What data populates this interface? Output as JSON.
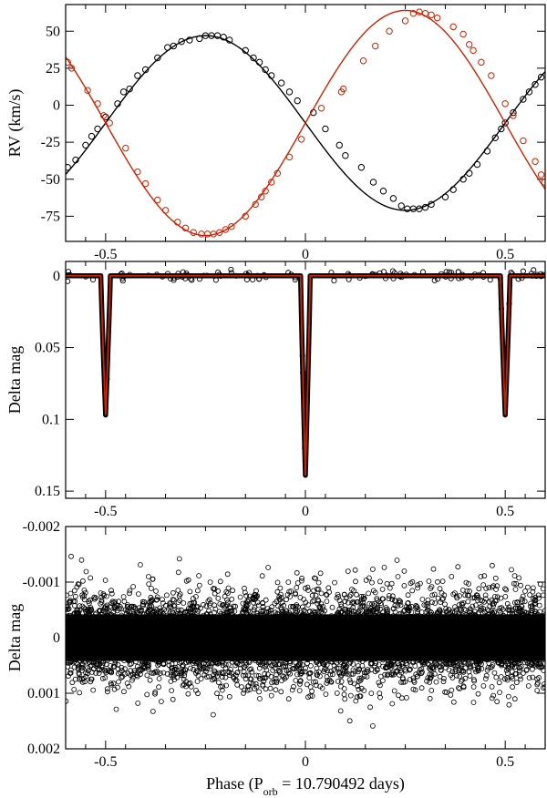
{
  "figure": {
    "xlabel_prefix": "Phase (P",
    "xlabel_sub": "orb",
    "xlabel_suffix": " = 10.790492 days)"
  },
  "chart_data": [
    {
      "type": "scatter",
      "panel": "radial-velocity",
      "ylabel": "RV (km/s)",
      "xlim": [
        -0.6,
        0.6
      ],
      "ylim": [
        -92,
        68
      ],
      "xticks": [
        -0.5,
        0,
        0.5
      ],
      "xtick_labels": [
        "-0.5",
        "0",
        "0.5"
      ],
      "yticks": [
        50,
        25,
        0,
        -25,
        -50,
        -75
      ],
      "ytick_labels": [
        "50",
        "25",
        "0",
        "-25",
        "-50",
        "-75"
      ],
      "grid": false,
      "series": [
        {
          "color": "#000000",
          "marker": "open-circle",
          "model": {
            "gamma": -12,
            "amplitude": 59,
            "phase_of_max": -0.25
          },
          "points": [
            [
              -0.595,
              -42
            ],
            [
              -0.575,
              -37
            ],
            [
              -0.55,
              -27
            ],
            [
              -0.535,
              -21
            ],
            [
              -0.52,
              -16
            ],
            [
              -0.5,
              -8
            ],
            [
              -0.47,
              1
            ],
            [
              -0.455,
              9
            ],
            [
              -0.44,
              11
            ],
            [
              -0.42,
              20
            ],
            [
              -0.4,
              24
            ],
            [
              -0.37,
              32
            ],
            [
              -0.345,
              39
            ],
            [
              -0.33,
              40
            ],
            [
              -0.31,
              43
            ],
            [
              -0.29,
              44
            ],
            [
              -0.265,
              45
            ],
            [
              -0.25,
              47
            ],
            [
              -0.235,
              47
            ],
            [
              -0.22,
              47
            ],
            [
              -0.205,
              46
            ],
            [
              -0.19,
              44
            ],
            [
              -0.15,
              37
            ],
            [
              -0.13,
              32
            ],
            [
              -0.115,
              29
            ],
            [
              -0.1,
              24
            ],
            [
              -0.085,
              20
            ],
            [
              -0.06,
              15
            ],
            [
              -0.04,
              9
            ],
            [
              -0.02,
              3
            ],
            [
              0.02,
              -5
            ],
            [
              0.05,
              -16
            ],
            [
              0.085,
              -27
            ],
            [
              0.1,
              -34
            ],
            [
              0.14,
              -42
            ],
            [
              0.17,
              -52
            ],
            [
              0.195,
              -58
            ],
            [
              0.22,
              -63
            ],
            [
              0.24,
              -68
            ],
            [
              0.255,
              -70
            ],
            [
              0.27,
              -70
            ],
            [
              0.285,
              -70
            ],
            [
              0.3,
              -69
            ],
            [
              0.315,
              -67
            ],
            [
              0.35,
              -62
            ],
            [
              0.37,
              -57
            ],
            [
              0.395,
              -50
            ],
            [
              0.41,
              -46
            ],
            [
              0.43,
              -40
            ],
            [
              0.455,
              -31
            ],
            [
              0.475,
              -22
            ],
            [
              0.49,
              -16
            ],
            [
              0.5,
              -12
            ],
            [
              0.52,
              -5
            ],
            [
              0.545,
              4
            ],
            [
              0.56,
              9
            ],
            [
              0.575,
              14
            ],
            [
              0.59,
              19
            ]
          ]
        },
        {
          "color": "#cc2200",
          "marker": "open-circle",
          "model": {
            "gamma": -12,
            "amplitude": 76,
            "phase_of_max": 0.25
          },
          "points": [
            [
              -0.595,
              29
            ],
            [
              -0.585,
              25
            ],
            [
              -0.545,
              10
            ],
            [
              -0.52,
              1
            ],
            [
              -0.505,
              -7
            ],
            [
              -0.49,
              -12
            ],
            [
              -0.45,
              -29
            ],
            [
              -0.42,
              -45
            ],
            [
              -0.4,
              -53
            ],
            [
              -0.37,
              -64
            ],
            [
              -0.35,
              -71
            ],
            [
              -0.32,
              -79
            ],
            [
              -0.3,
              -83
            ],
            [
              -0.28,
              -86
            ],
            [
              -0.26,
              -87
            ],
            [
              -0.245,
              -87
            ],
            [
              -0.23,
              -87
            ],
            [
              -0.215,
              -86
            ],
            [
              -0.2,
              -84
            ],
            [
              -0.185,
              -82
            ],
            [
              -0.15,
              -75
            ],
            [
              -0.125,
              -67
            ],
            [
              -0.11,
              -62
            ],
            [
              -0.1,
              -58
            ],
            [
              -0.085,
              -52
            ],
            [
              -0.07,
              -46
            ],
            [
              -0.04,
              -35
            ],
            [
              -0.01,
              -23
            ],
            [
              0.04,
              -2
            ],
            [
              0.09,
              9
            ],
            [
              0.095,
              11
            ],
            [
              0.145,
              30
            ],
            [
              0.175,
              40
            ],
            [
              0.21,
              50
            ],
            [
              0.25,
              57
            ],
            [
              0.27,
              62
            ],
            [
              0.285,
              63
            ],
            [
              0.3,
              62
            ],
            [
              0.315,
              61
            ],
            [
              0.33,
              59
            ],
            [
              0.37,
              53
            ],
            [
              0.395,
              48
            ],
            [
              0.41,
              41
            ],
            [
              0.42,
              37
            ],
            [
              0.44,
              29
            ],
            [
              0.465,
              20
            ],
            [
              0.5,
              1
            ],
            [
              0.52,
              -7
            ],
            [
              0.545,
              -24
            ],
            [
              0.575,
              -38
            ],
            [
              0.59,
              -47
            ],
            [
              0.598,
              -52
            ]
          ]
        }
      ]
    },
    {
      "type": "scatter",
      "panel": "light-curve",
      "ylabel": "Delta mag",
      "xlim": [
        -0.6,
        0.6
      ],
      "ylim": [
        0.155,
        -0.01
      ],
      "xticks": [
        -0.5,
        0,
        0.5
      ],
      "xtick_labels": [
        "-0.5",
        "0",
        "0.5"
      ],
      "yticks": [
        0,
        0.05,
        0.1,
        0.15
      ],
      "ytick_labels": [
        "0",
        "0.05",
        "0.1",
        "0.15"
      ],
      "grid": false,
      "data_color": "#000000",
      "model_color": "#cc2200",
      "eclipses": [
        {
          "phase": -0.5,
          "depth": 0.097,
          "half_width": 0.012
        },
        {
          "phase": 0.0,
          "depth": 0.139,
          "half_width": 0.012
        },
        {
          "phase": 0.5,
          "depth": 0.097,
          "half_width": 0.012
        }
      ]
    },
    {
      "type": "scatter",
      "panel": "residuals",
      "ylabel": "Delta mag",
      "xlim": [
        -0.6,
        0.6
      ],
      "ylim": [
        0.002,
        -0.002
      ],
      "xticks": [
        -0.5,
        0,
        0.5
      ],
      "xtick_labels": [
        "-0.5",
        "0",
        "0.5"
      ],
      "yticks": [
        -0.002,
        -0.001,
        0,
        0.001,
        0.002
      ],
      "ytick_labels": [
        "-0.002",
        "-0.001",
        "0",
        "0.001",
        "0.002"
      ],
      "grid": false,
      "marker": "open-circle",
      "color": "#000000",
      "scatter_sigma": 0.00042
    }
  ]
}
